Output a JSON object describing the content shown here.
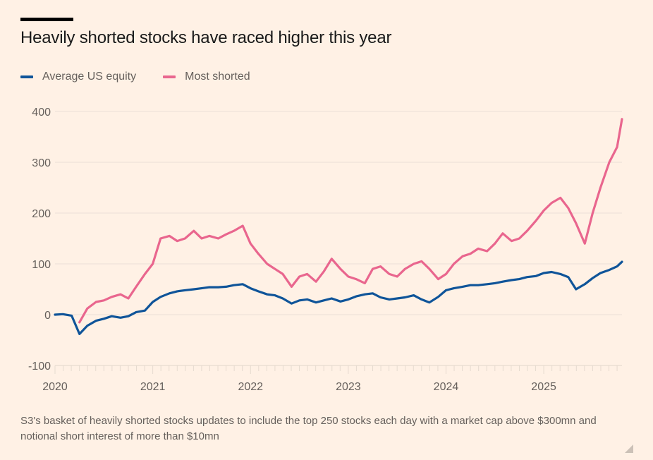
{
  "title": "Heavily shorted stocks have raced higher this year",
  "footnote": "S3's basket of heavily shorted stocks updates to include the top 250 stocks each day with a market cap above $300mn and notional short interest of more than $10mn",
  "colors": {
    "background": "#fff1e5",
    "avg": "#0f5499",
    "shorted": "#e9668e",
    "grid": "#ebe0d6",
    "text": "#66605c"
  },
  "chart_data": {
    "type": "line",
    "title": "Heavily shorted stocks have raced higher this year",
    "xlabel": "",
    "ylabel": "",
    "ylim": [
      -100,
      400
    ],
    "yticks": [
      400,
      300,
      200,
      100,
      0,
      -100
    ],
    "xlim": [
      2020.0,
      2025.8
    ],
    "xticks": [
      2020,
      2021,
      2022,
      2023,
      2024,
      2025
    ],
    "xtick_labels": [
      "2020",
      "2021",
      "2022",
      "2023",
      "2024",
      "2025"
    ],
    "grid": true,
    "legend_position": "top-left",
    "x": [
      2020.0,
      2020.08,
      2020.17,
      2020.25,
      2020.33,
      2020.42,
      2020.5,
      2020.58,
      2020.67,
      2020.75,
      2020.83,
      2020.92,
      2021.0,
      2021.08,
      2021.17,
      2021.25,
      2021.33,
      2021.42,
      2021.5,
      2021.58,
      2021.67,
      2021.75,
      2021.83,
      2021.92,
      2022.0,
      2022.08,
      2022.17,
      2022.25,
      2022.33,
      2022.42,
      2022.5,
      2022.58,
      2022.67,
      2022.75,
      2022.83,
      2022.92,
      2023.0,
      2023.08,
      2023.17,
      2023.25,
      2023.33,
      2023.42,
      2023.5,
      2023.58,
      2023.67,
      2023.75,
      2023.83,
      2023.92,
      2024.0,
      2024.08,
      2024.17,
      2024.25,
      2024.33,
      2024.42,
      2024.5,
      2024.58,
      2024.67,
      2024.75,
      2024.83,
      2024.92,
      2025.0,
      2025.08,
      2025.17,
      2025.25,
      2025.33,
      2025.42,
      2025.5,
      2025.58,
      2025.67,
      2025.75,
      2025.8
    ],
    "series": [
      {
        "name": "Average US equity",
        "color": "#0f5499",
        "values": [
          0,
          1,
          -2,
          -38,
          -22,
          -12,
          -8,
          -3,
          -6,
          -3,
          5,
          8,
          25,
          35,
          42,
          46,
          48,
          50,
          52,
          54,
          54,
          55,
          58,
          60,
          52,
          46,
          40,
          38,
          32,
          22,
          28,
          30,
          24,
          28,
          32,
          26,
          30,
          36,
          40,
          42,
          34,
          30,
          32,
          34,
          38,
          30,
          24,
          35,
          48,
          52,
          55,
          58,
          58,
          60,
          62,
          65,
          68,
          70,
          74,
          76,
          82,
          84,
          80,
          74,
          50,
          60,
          72,
          82,
          88,
          95,
          104
        ]
      },
      {
        "name": "Most shorted",
        "color": "#e9668e",
        "values": [
          null,
          null,
          null,
          -15,
          12,
          25,
          28,
          35,
          40,
          32,
          55,
          80,
          100,
          150,
          155,
          145,
          150,
          165,
          150,
          155,
          150,
          158,
          165,
          175,
          140,
          120,
          100,
          90,
          80,
          55,
          75,
          80,
          65,
          85,
          110,
          90,
          75,
          70,
          62,
          90,
          95,
          80,
          75,
          90,
          100,
          105,
          90,
          70,
          80,
          100,
          115,
          120,
          130,
          125,
          140,
          160,
          145,
          150,
          165,
          185,
          205,
          220,
          230,
          210,
          180,
          140,
          200,
          250,
          300,
          330,
          385
        ]
      }
    ]
  },
  "legend": [
    {
      "label": "Average US equity",
      "color": "#0f5499"
    },
    {
      "label": "Most shorted",
      "color": "#e9668e"
    }
  ]
}
